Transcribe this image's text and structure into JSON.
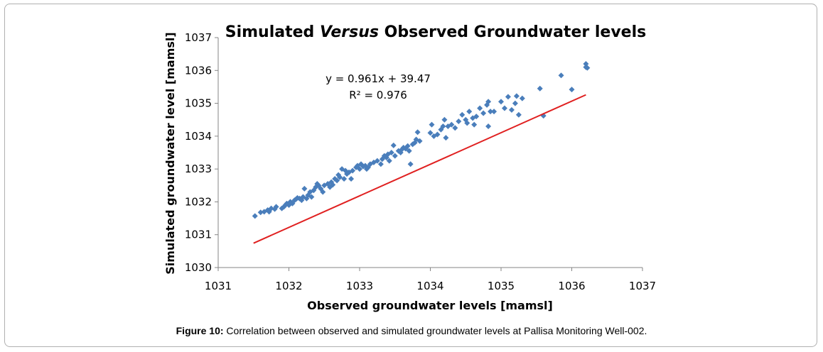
{
  "caption": {
    "label": "Figure 10:",
    "text": "Correlation between observed and simulated groundwater levels at Pallisa Monitoring Well-002."
  },
  "chart_data": {
    "type": "scatter",
    "title": {
      "prefix": "Simulated ",
      "italic": "Versus",
      "suffix": " Observed Groundwater levels"
    },
    "xlabel": "Observed groundwater levels [mamsl]",
    "ylabel": "Simulated groundwater level [mamsl]",
    "xlim": [
      1031,
      1037
    ],
    "ylim": [
      1030,
      1037
    ],
    "xticks": [
      "1031",
      "1032",
      "1033",
      "1034",
      "1035",
      "1036",
      "1037"
    ],
    "yticks": [
      "1030",
      "1031",
      "1032",
      "1033",
      "1034",
      "1035",
      "1036",
      "1037"
    ],
    "grid": false,
    "legend": "none",
    "marker_color": "#4a7ebb",
    "trendline": {
      "slope": 0.961,
      "intercept": 39.47,
      "x_range": [
        1031.5,
        1036.2
      ],
      "color": "#e02020",
      "equation_label": "y = 0.961x + 39.47",
      "r2_label": "R² = 0.976"
    },
    "series": [
      {
        "points": [
          [
            1031.52,
            1031.57
          ],
          [
            1031.6,
            1031.68
          ],
          [
            1031.65,
            1031.7
          ],
          [
            1031.7,
            1031.75
          ],
          [
            1031.72,
            1031.7
          ],
          [
            1031.75,
            1031.8
          ],
          [
            1031.8,
            1031.78
          ],
          [
            1031.82,
            1031.85
          ],
          [
            1031.9,
            1031.8
          ],
          [
            1031.93,
            1031.85
          ],
          [
            1031.95,
            1031.9
          ],
          [
            1031.97,
            1031.95
          ],
          [
            1032.0,
            1031.9
          ],
          [
            1032.02,
            1032.0
          ],
          [
            1032.05,
            1031.95
          ],
          [
            1032.08,
            1032.05
          ],
          [
            1032.1,
            1032.08
          ],
          [
            1032.12,
            1032.12
          ],
          [
            1032.15,
            1032.1
          ],
          [
            1032.18,
            1032.05
          ],
          [
            1032.2,
            1032.15
          ],
          [
            1032.22,
            1032.4
          ],
          [
            1032.25,
            1032.1
          ],
          [
            1032.27,
            1032.2
          ],
          [
            1032.3,
            1032.3
          ],
          [
            1032.32,
            1032.15
          ],
          [
            1032.35,
            1032.35
          ],
          [
            1032.38,
            1032.45
          ],
          [
            1032.4,
            1032.55
          ],
          [
            1032.42,
            1032.5
          ],
          [
            1032.45,
            1032.4
          ],
          [
            1032.48,
            1032.3
          ],
          [
            1032.5,
            1032.5
          ],
          [
            1032.55,
            1032.55
          ],
          [
            1032.58,
            1032.45
          ],
          [
            1032.6,
            1032.6
          ],
          [
            1032.62,
            1032.52
          ],
          [
            1032.65,
            1032.7
          ],
          [
            1032.68,
            1032.65
          ],
          [
            1032.7,
            1032.82
          ],
          [
            1032.72,
            1032.75
          ],
          [
            1032.75,
            1033.0
          ],
          [
            1032.78,
            1032.7
          ],
          [
            1032.8,
            1032.95
          ],
          [
            1032.82,
            1032.85
          ],
          [
            1032.85,
            1032.9
          ],
          [
            1032.88,
            1032.7
          ],
          [
            1032.9,
            1032.95
          ],
          [
            1032.95,
            1033.05
          ],
          [
            1032.97,
            1033.1
          ],
          [
            1033.0,
            1033.0
          ],
          [
            1033.02,
            1033.15
          ],
          [
            1033.05,
            1033.08
          ],
          [
            1033.08,
            1033.1
          ],
          [
            1033.1,
            1033.0
          ],
          [
            1033.12,
            1033.05
          ],
          [
            1033.15,
            1033.15
          ],
          [
            1033.2,
            1033.2
          ],
          [
            1033.25,
            1033.25
          ],
          [
            1033.3,
            1033.15
          ],
          [
            1033.32,
            1033.3
          ],
          [
            1033.35,
            1033.4
          ],
          [
            1033.38,
            1033.35
          ],
          [
            1033.4,
            1033.45
          ],
          [
            1033.42,
            1033.25
          ],
          [
            1033.45,
            1033.5
          ],
          [
            1033.48,
            1033.72
          ],
          [
            1033.5,
            1033.4
          ],
          [
            1033.55,
            1033.55
          ],
          [
            1033.58,
            1033.5
          ],
          [
            1033.6,
            1033.6
          ],
          [
            1033.62,
            1033.65
          ],
          [
            1033.65,
            1033.62
          ],
          [
            1033.68,
            1033.7
          ],
          [
            1033.7,
            1033.55
          ],
          [
            1033.72,
            1033.15
          ],
          [
            1033.75,
            1033.75
          ],
          [
            1033.78,
            1033.8
          ],
          [
            1033.8,
            1033.9
          ],
          [
            1033.82,
            1034.12
          ],
          [
            1033.85,
            1033.85
          ],
          [
            1034.0,
            1034.1
          ],
          [
            1034.02,
            1034.35
          ],
          [
            1034.05,
            1034.0
          ],
          [
            1034.1,
            1034.05
          ],
          [
            1034.15,
            1034.2
          ],
          [
            1034.18,
            1034.3
          ],
          [
            1034.2,
            1034.5
          ],
          [
            1034.22,
            1033.95
          ],
          [
            1034.25,
            1034.3
          ],
          [
            1034.3,
            1034.35
          ],
          [
            1034.35,
            1034.25
          ],
          [
            1034.4,
            1034.45
          ],
          [
            1034.45,
            1034.65
          ],
          [
            1034.5,
            1034.5
          ],
          [
            1034.52,
            1034.4
          ],
          [
            1034.55,
            1034.75
          ],
          [
            1034.6,
            1034.55
          ],
          [
            1034.62,
            1034.35
          ],
          [
            1034.65,
            1034.6
          ],
          [
            1034.7,
            1034.85
          ],
          [
            1034.75,
            1034.7
          ],
          [
            1034.8,
            1034.95
          ],
          [
            1034.82,
            1035.05
          ],
          [
            1034.85,
            1034.75
          ],
          [
            1034.9,
            1034.75
          ],
          [
            1034.82,
            1034.3
          ],
          [
            1035.0,
            1035.05
          ],
          [
            1035.05,
            1034.85
          ],
          [
            1035.1,
            1035.2
          ],
          [
            1035.15,
            1034.8
          ],
          [
            1035.2,
            1035.0
          ],
          [
            1035.22,
            1035.22
          ],
          [
            1035.25,
            1034.65
          ],
          [
            1035.3,
            1035.15
          ],
          [
            1035.55,
            1035.45
          ],
          [
            1035.6,
            1034.62
          ],
          [
            1035.85,
            1035.85
          ],
          [
            1036.0,
            1035.42
          ],
          [
            1036.2,
            1036.1
          ],
          [
            1036.2,
            1036.2
          ],
          [
            1036.22,
            1036.08
          ]
        ]
      }
    ]
  }
}
